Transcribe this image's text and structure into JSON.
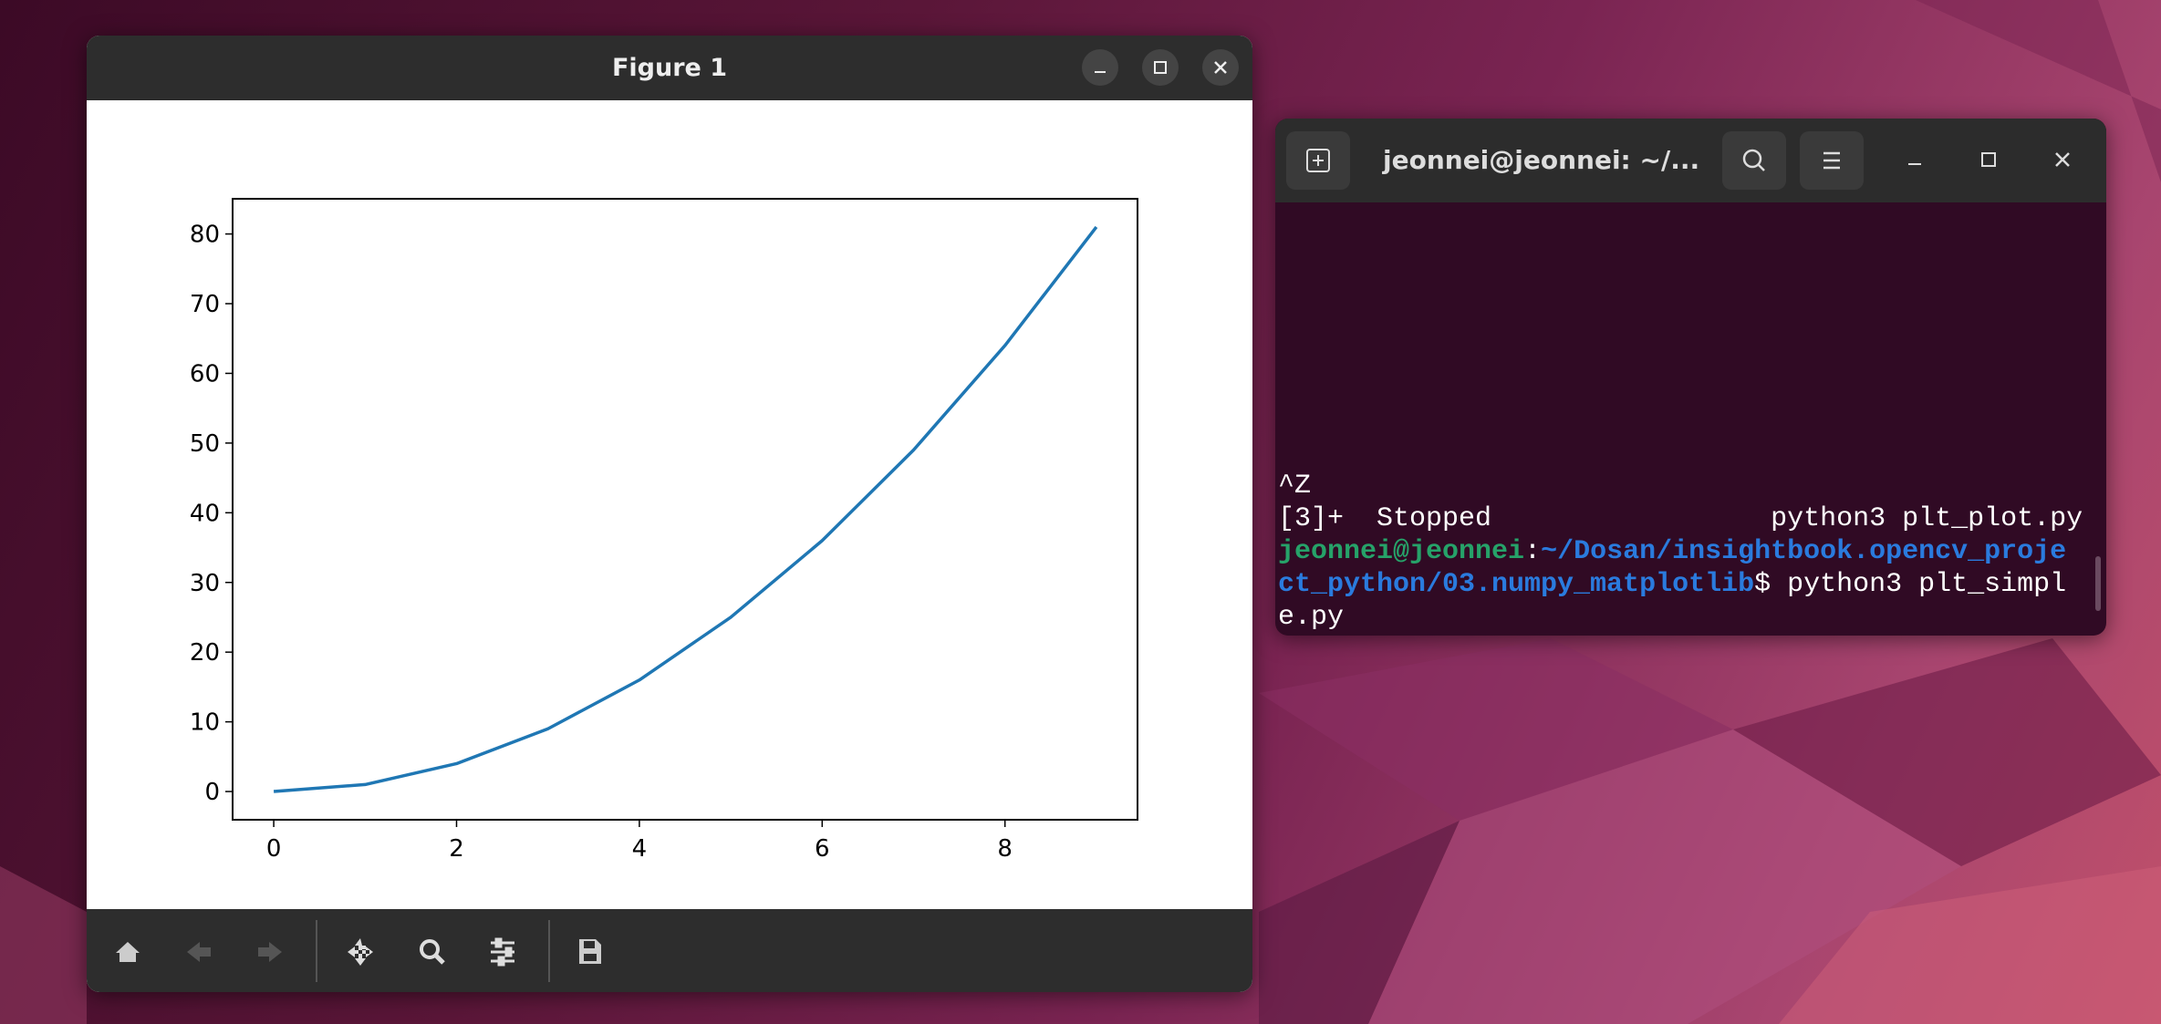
{
  "figure_window": {
    "title": "Figure 1"
  },
  "chart_data": {
    "type": "line",
    "x": [
      0,
      1,
      2,
      3,
      4,
      5,
      6,
      7,
      8,
      9
    ],
    "values": [
      0,
      1,
      4,
      9,
      16,
      25,
      36,
      49,
      64,
      81
    ],
    "color": "#1f77b4",
    "xlim": [
      -0.45,
      9.45
    ],
    "ylim": [
      -4.05,
      85.05
    ],
    "xticks": [
      0,
      2,
      4,
      6,
      8
    ],
    "yticks": [
      0,
      10,
      20,
      30,
      40,
      50,
      60,
      70,
      80
    ]
  },
  "terminal": {
    "title": "jeonnei@jeonnei: ~/...",
    "lines": [
      "^Z",
      "[3]+  Stopped                 python3 plt_plot.py"
    ],
    "prompt": {
      "user": "jeonnei@jeonnei",
      "separator": ":",
      "path": "~/Dosan/insightbook.opencv_project_python/03.numpy_matplotlib",
      "command": "$ python3 plt_simple.py"
    }
  }
}
